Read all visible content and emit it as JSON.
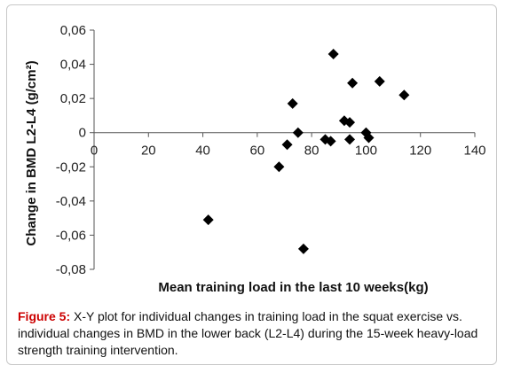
{
  "chart_data": {
    "type": "scatter",
    "title": "",
    "xlabel": "Mean training load in the last 10 weeks(kg)",
    "ylabel": "Change in BMD L2-L4 (g/cm²)",
    "xlim": [
      0,
      140
    ],
    "ylim": [
      -0.08,
      0.06
    ],
    "x_ticks": [
      "0",
      "20",
      "40",
      "60",
      "80",
      "100",
      "120",
      "140"
    ],
    "y_ticks": [
      "0,06",
      "0,04",
      "0,02",
      "0",
      "-0,02",
      "-0,04",
      "-0,06",
      "-0,08"
    ],
    "grid": false,
    "marker": "diamond",
    "marker_color": "#000000",
    "points": [
      {
        "x": 42,
        "y": -0.051
      },
      {
        "x": 68,
        "y": -0.02
      },
      {
        "x": 71,
        "y": -0.007
      },
      {
        "x": 73,
        "y": 0.017
      },
      {
        "x": 75,
        "y": 0.0
      },
      {
        "x": 77,
        "y": -0.068
      },
      {
        "x": 85,
        "y": -0.004
      },
      {
        "x": 87,
        "y": -0.005
      },
      {
        "x": 88,
        "y": 0.046
      },
      {
        "x": 92,
        "y": 0.007
      },
      {
        "x": 94,
        "y": 0.006
      },
      {
        "x": 94,
        "y": -0.004
      },
      {
        "x": 95,
        "y": 0.029
      },
      {
        "x": 100,
        "y": 0.0
      },
      {
        "x": 101,
        "y": -0.003
      },
      {
        "x": 105,
        "y": 0.03
      },
      {
        "x": 114,
        "y": 0.022
      }
    ]
  },
  "caption": {
    "label": "Figure 5:",
    "text": " X-Y plot for individual changes in training load in the squat exercise vs. individual changes in BMD in the lower back (L2-L4) during the 15-week heavy-load strength training intervention."
  }
}
